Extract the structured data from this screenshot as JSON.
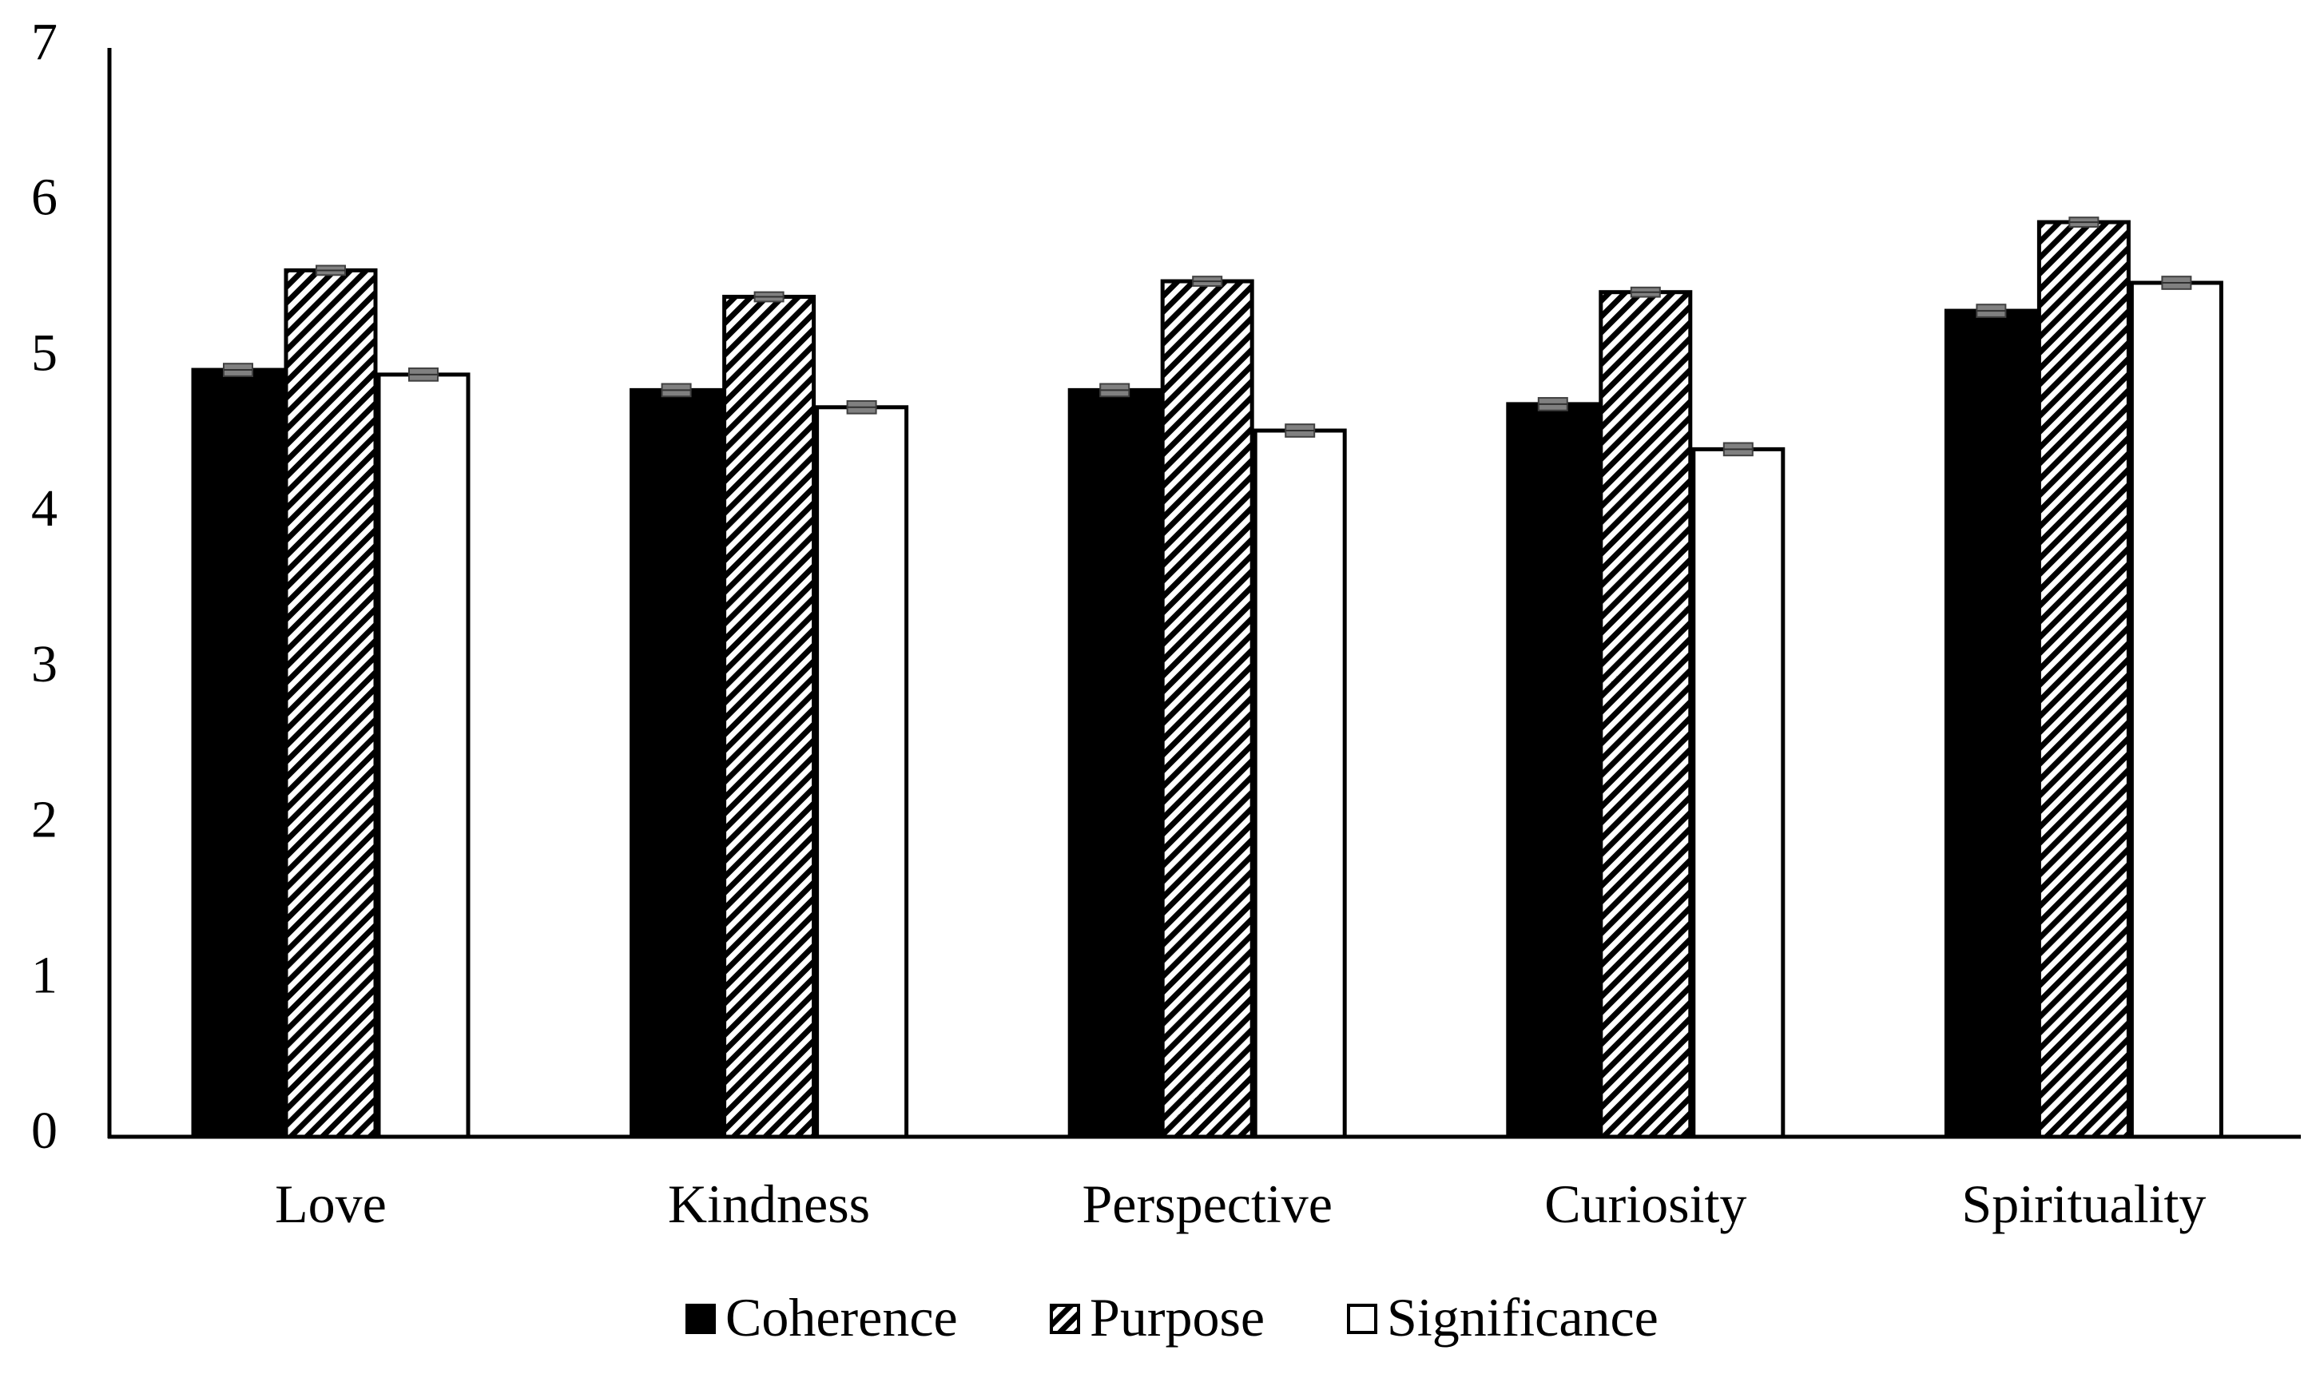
{
  "chart_data": {
    "type": "bar",
    "title": "",
    "xlabel": "",
    "ylabel": "",
    "ylim": [
      0,
      7
    ],
    "yticks": [
      "0",
      "1",
      "2",
      "3",
      "4",
      "5",
      "6",
      "7"
    ],
    "categories": [
      "Love",
      "Kindness",
      "Perspective",
      "Curiosity",
      "Spirituality"
    ],
    "series": [
      {
        "name": "Coherence",
        "fill": "solid",
        "color": "#000000",
        "values": [
          4.93,
          4.8,
          4.8,
          4.71,
          5.31
        ],
        "errors": [
          0.03,
          0.03,
          0.03,
          0.03,
          0.03
        ]
      },
      {
        "name": "Purpose",
        "fill": "hatch",
        "color": "#000000",
        "values": [
          5.57,
          5.4,
          5.5,
          5.43,
          5.88
        ],
        "errors": [
          0.02,
          0.02,
          0.02,
          0.02,
          0.02
        ]
      },
      {
        "name": "Significance",
        "fill": "white",
        "color": "#ffffff",
        "values": [
          4.9,
          4.69,
          4.54,
          4.42,
          5.49
        ],
        "errors": [
          0.03,
          0.03,
          0.03,
          0.03,
          0.03
        ]
      }
    ],
    "legend_position": "bottom-center",
    "grid": false
  }
}
